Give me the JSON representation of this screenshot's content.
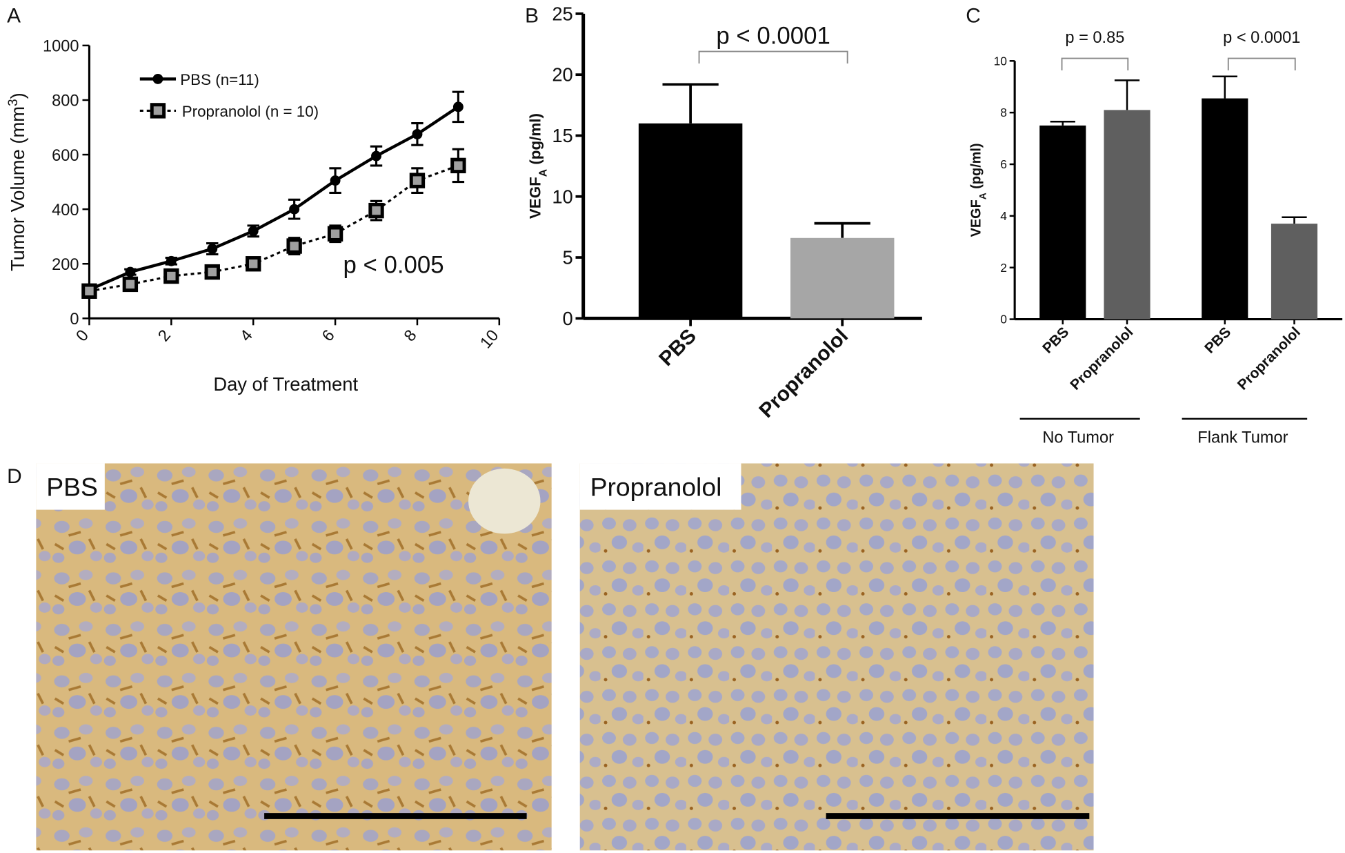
{
  "chart_data": [
    {
      "type": "line",
      "panel": "A",
      "x_label": "Day of Treatment",
      "y_label": [
        "Tumor Volume (mm",
        "3",
        ")"
      ],
      "x": [
        0,
        1,
        2,
        3,
        4,
        5,
        6,
        7,
        8,
        9
      ],
      "series": [
        {
          "name": "PBS (n=11)",
          "color": "#000000",
          "style": "solid",
          "marker": "circle",
          "values": [
            105,
            170,
            210,
            255,
            320,
            400,
            505,
            595,
            675,
            775
          ],
          "errors": [
            10,
            10,
            12,
            20,
            20,
            35,
            45,
            35,
            40,
            55
          ]
        },
        {
          "name": "Propranolol (n = 10)",
          "color": "#a0a0a0",
          "style": "dotted",
          "marker": "square",
          "values": [
            100,
            125,
            155,
            170,
            200,
            265,
            310,
            395,
            505,
            560
          ],
          "errors": [
            10,
            10,
            12,
            12,
            15,
            30,
            30,
            35,
            45,
            60
          ]
        }
      ],
      "xlim": [
        0,
        10
      ],
      "xticks": [
        0,
        2,
        4,
        6,
        8,
        10
      ],
      "ylim": [
        0,
        1000
      ],
      "yticks": [
        0,
        200,
        400,
        600,
        800,
        1000
      ],
      "annotation": "p < 0.005"
    },
    {
      "type": "bar",
      "panel": "B",
      "y_label": [
        "VEGF",
        "A",
        " (pg/ml)"
      ],
      "categories": [
        "PBS",
        "Propranolol"
      ],
      "values": [
        16,
        6.6
      ],
      "errors": [
        3.2,
        1.2
      ],
      "colors": [
        "#000000",
        "#a6a6a6"
      ],
      "ylim": [
        0,
        25
      ],
      "yticks": [
        0,
        5,
        10,
        15,
        20,
        25
      ],
      "annotations": [
        "p < 0.0001"
      ]
    },
    {
      "type": "bar",
      "panel": "C",
      "y_label": [
        "VEGF",
        "A",
        " (pg/ml)"
      ],
      "categories": [
        "PBS",
        "Propranolol",
        "PBS",
        "Propranolol"
      ],
      "groups": [
        "No Tumor",
        "Flank Tumor"
      ],
      "values": [
        7.5,
        8.1,
        8.55,
        3.7
      ],
      "errors": [
        0.15,
        1.15,
        0.85,
        0.25
      ],
      "colors": [
        "#000000",
        "#5f5f5f",
        "#000000",
        "#5f5f5f"
      ],
      "ylim": [
        0,
        10
      ],
      "yticks": [
        0,
        2,
        4,
        6,
        8,
        10
      ],
      "annotations": [
        "p = 0.85",
        "p < 0.0001"
      ]
    }
  ],
  "images": {
    "panel": "D",
    "labels": [
      "PBS",
      "Propranolol"
    ]
  }
}
